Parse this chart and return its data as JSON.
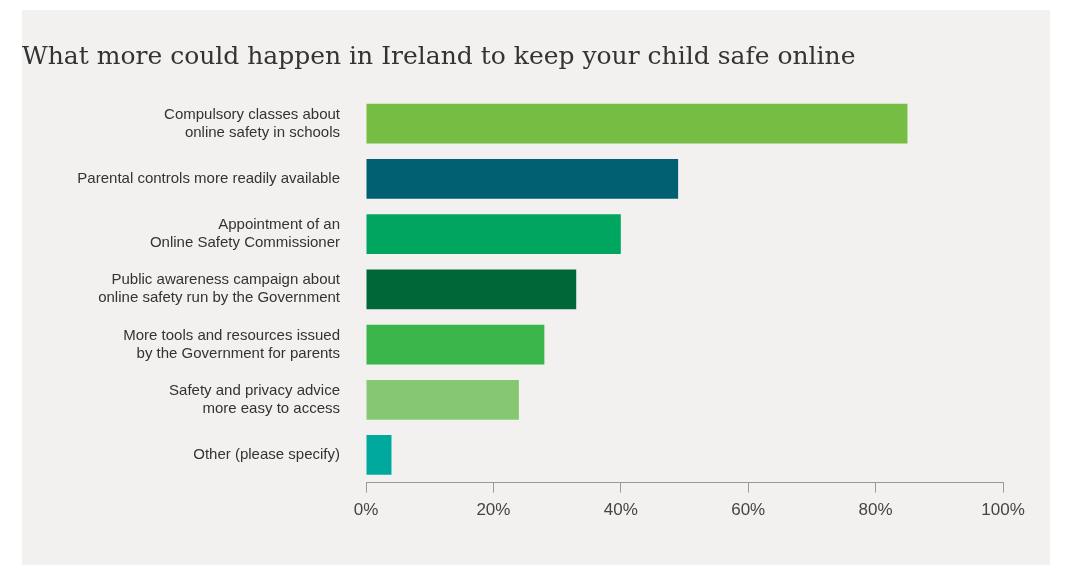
{
  "chart_data": {
    "type": "bar",
    "orientation": "horizontal",
    "title": "What more could happen in Ireland to keep your child safe online",
    "categories": [
      "Compulsory classes about\nonline safety in schools",
      "Parental controls more readily available",
      "Appointment of an\nOnline Safety Commissioner",
      "Public awareness campaign about\nonline safety run by the Government",
      "More tools and resources issued\nby the Government for parents",
      "Safety and privacy advice\nmore easy to access",
      "Other (please specify)"
    ],
    "values": [
      85,
      49,
      40,
      33,
      28,
      24,
      4
    ],
    "colors": [
      "#76bd43",
      "#006072",
      "#00a560",
      "#006838",
      "#3ab54a",
      "#86c872",
      "#00a99d"
    ],
    "xlim": [
      0,
      100
    ],
    "xticks": [
      {
        "value": 0,
        "label": "0%"
      },
      {
        "value": 20,
        "label": "20%"
      },
      {
        "value": 40,
        "label": "40%"
      },
      {
        "value": 60,
        "label": "60%"
      },
      {
        "value": 80,
        "label": "80%"
      },
      {
        "value": 100,
        "label": "100%"
      }
    ],
    "grid": false,
    "legend": false
  }
}
